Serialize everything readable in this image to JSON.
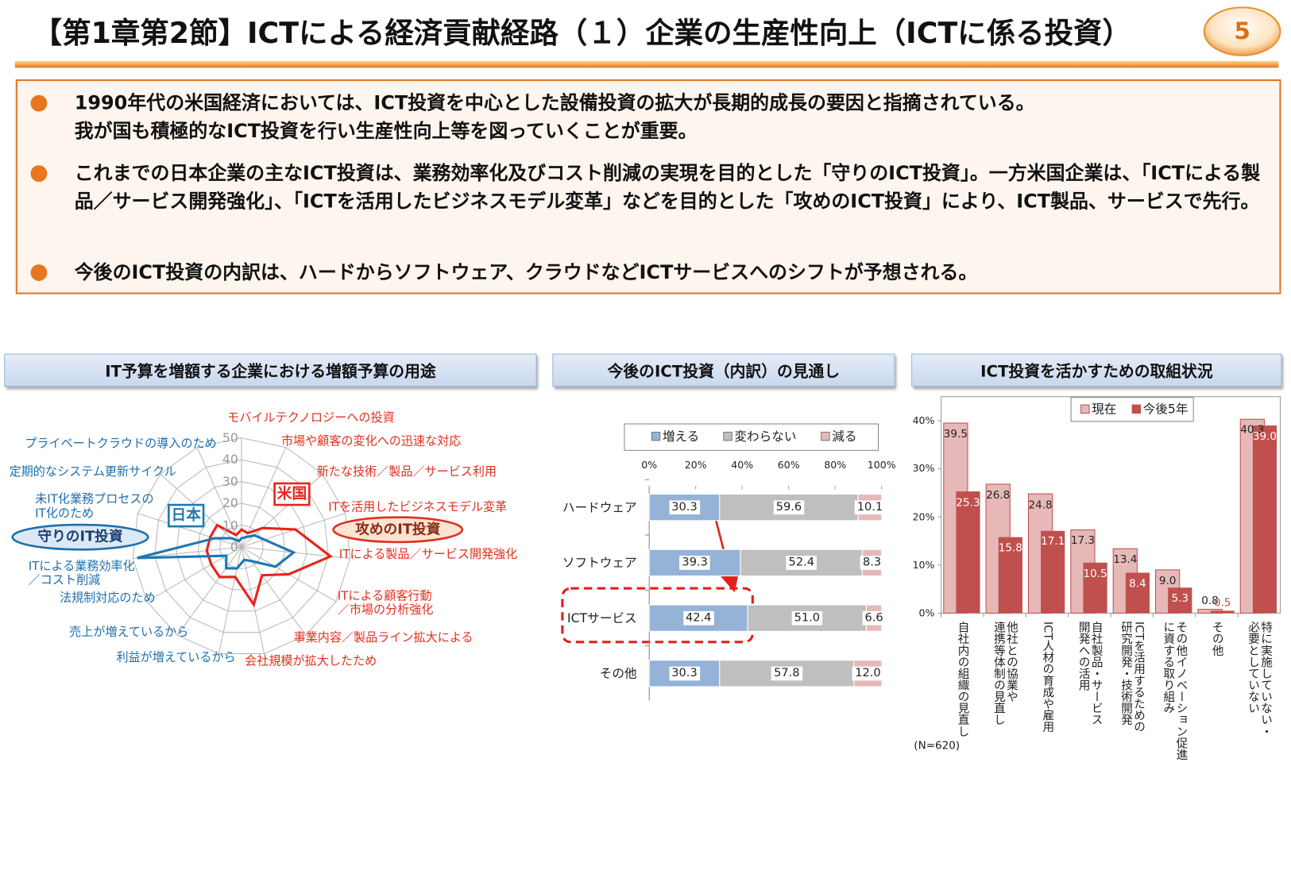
{
  "header": {
    "title": "【第1章第2節】ICTによる経済貢献経路（１）企業の生産性向上（ICTに係る投資）",
    "page": "5"
  },
  "bullets": [
    "1990年代の米国経済においては、ICT投資を中心とした設備投資の拡大が長期的成長の要因と指摘されている。\n我が国も積極的なICT投資を行い生産性向上等を図っていくことが重要。",
    "これまでの日本企業の主なICT投資は、業務効率化及びコスト削減の実現を目的とした「守りのICT投資」。一方米国企業は、「ICTによる製品／サービス開発強化」、「ICTを活用したビジネスモデル変革」などを目的とした「攻めのICT投資」により、ICT製品、サービスで先行。",
    "今後のICT投資の内訳は、ハードからソフトウェア、クラウドなどICTサービスへのシフトが予想される。"
  ],
  "chart_data": [
    {
      "type": "radar",
      "title": "IT予算を増額する企業における増額予算の用途",
      "categories": [
        "モバイルテクノロジーへの投資",
        "市場や顧客の変化への迅速な対応",
        "新たな技術／製品／サービス利用",
        "ITを活用したビジネスモデル変革",
        "ITによる製品／サービス開発強化",
        "ITによる顧客行動\n／市場の分析強化",
        "事業内容／製品ライン拡大による",
        "会社規模が拡大したため",
        "利益が増えているから",
        "売上が増えているから",
        "法規制対応のため",
        "ITによる業務効率化\n／コスト削減",
        "未IT化業務プロセスの\nIT化のため",
        "定期的なシステム更新サイクル",
        "プライベートクラウドの導入のため"
      ],
      "series": [
        {
          "name": "米国",
          "color": "#e8231b",
          "values": [
            8,
            7,
            13,
            26,
            41,
            25,
            16,
            27,
            14,
            17,
            16,
            16,
            15,
            15,
            6
          ]
        },
        {
          "name": "日本",
          "color": "#1f77b4",
          "values": [
            4,
            5,
            8,
            11,
            24,
            18,
            8,
            6,
            10,
            12,
            8,
            48,
            13,
            6,
            3
          ]
        }
      ],
      "ylim": [
        0,
        50
      ],
      "yticks": [
        0,
        10,
        20,
        30,
        40,
        50
      ],
      "annotations": [
        "守りのIT投資",
        "攻めのIT投資"
      ]
    },
    {
      "type": "bar",
      "orientation": "horizontal",
      "stacked": true,
      "title": "今後のICT投資（内訳）の見通し",
      "categories": [
        "ハードウェア",
        "ソフトウェア",
        "ICTサービス",
        "その他"
      ],
      "series": [
        {
          "name": "増える",
          "color": "#95b3d7",
          "values": [
            30.3,
            39.3,
            42.4,
            30.3
          ],
          "value_labels": [
            "30.3",
            "39.3",
            "42.4",
            "30.3"
          ]
        },
        {
          "name": "変わらない",
          "color": "#bfbfbf",
          "values": [
            59.6,
            52.4,
            51.0,
            57.8
          ],
          "value_labels": [
            "59.6",
            "52.4",
            "51.0",
            "57.8"
          ]
        },
        {
          "name": "減る",
          "color": "#e6b9b8",
          "values": [
            10.1,
            8.3,
            6.6,
            12.0
          ],
          "value_labels": [
            "10.1",
            "8.3",
            "6.6",
            "12.0"
          ]
        }
      ],
      "xlim": [
        0,
        100
      ],
      "xticks": [
        {
          "value": 0,
          "label": "0%"
        },
        {
          "value": 20,
          "label": "20%"
        },
        {
          "value": 40,
          "label": "40%"
        },
        {
          "value": 60,
          "label": "60%"
        },
        {
          "value": 80,
          "label": "80%"
        },
        {
          "value": 100,
          "label": "100%"
        }
      ]
    },
    {
      "type": "bar",
      "orientation": "vertical",
      "stacked": false,
      "title": "ICT投資を活かすための取組状況",
      "categories": [
        "自社内の組織の見直し",
        "他社との協業や\n連携等体制の見直し",
        "ICT人材の育成や雇用",
        "自社製品・サービス\n開発への活用",
        "ICTを活用するための\n研究開発・技術開発",
        "その他イノベーション促進\nに資する取り組み",
        "その他",
        "特に実施していない・\n必要としていない"
      ],
      "series": [
        {
          "name": "現在",
          "color": "#e6b9b8",
          "values": [
            39.5,
            26.8,
            24.8,
            17.3,
            13.4,
            9.0,
            0.8,
            40.3
          ],
          "value_labels": [
            "39.5",
            "26.8",
            "24.8",
            "17.3",
            "13.4",
            "9.0",
            "0.8",
            "40.3"
          ]
        },
        {
          "name": "今後5年",
          "color": "#c0504d",
          "values": [
            25.3,
            15.8,
            17.1,
            10.5,
            8.4,
            5.3,
            0.5,
            39.0
          ],
          "value_labels": [
            "25.3",
            "15.8",
            "17.1",
            "10.5",
            "8.4",
            "5.3",
            "0.5",
            "39.0"
          ]
        }
      ],
      "ylim": [
        0,
        45
      ],
      "yticks": [
        {
          "value": 0,
          "label": "0%"
        },
        {
          "value": 10,
          "label": "10%"
        },
        {
          "value": 20,
          "label": "20%"
        },
        {
          "value": 30,
          "label": "30%"
        },
        {
          "value": 40,
          "label": "40%"
        }
      ],
      "note": "(N=620)"
    }
  ]
}
